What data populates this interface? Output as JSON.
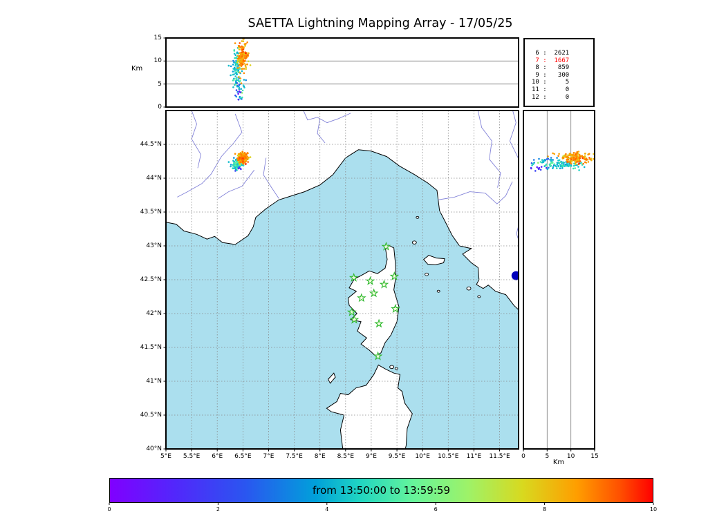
{
  "chart_data": {
    "type": "scatter",
    "title": "SAETTA Lightning Mapping Array - 17/05/25",
    "map_panel": {
      "lon_range": [
        5.0,
        11.87
      ],
      "lat_range": [
        40.0,
        45.0
      ],
      "lon_ticks": [
        {
          "v": 5,
          "t": "5°E"
        },
        {
          "v": 5.5,
          "t": "5.5°E"
        },
        {
          "v": 6,
          "t": "6°E"
        },
        {
          "v": 6.5,
          "t": "6.5°E"
        },
        {
          "v": 7,
          "t": "7°E"
        },
        {
          "v": 7.5,
          "t": "7.5°E"
        },
        {
          "v": 8,
          "t": "8°E"
        },
        {
          "v": 8.5,
          "t": "8.5°E"
        },
        {
          "v": 9,
          "t": "9°E"
        },
        {
          "v": 9.5,
          "t": "9.5°E"
        },
        {
          "v": 10,
          "t": "10°E"
        },
        {
          "v": 10.5,
          "t": "10.5°E"
        },
        {
          "v": 11,
          "t": "11°E"
        },
        {
          "v": 11.5,
          "t": "11.5°E"
        }
      ],
      "lat_ticks": [
        {
          "v": 40,
          "t": "40°N"
        },
        {
          "v": 40.5,
          "t": "40.5°N"
        },
        {
          "v": 41,
          "t": "41°N"
        },
        {
          "v": 41.5,
          "t": "41.5°N"
        },
        {
          "v": 42,
          "t": "42°N"
        },
        {
          "v": 42.5,
          "t": "42.5°N"
        },
        {
          "v": 43,
          "t": "43°N"
        },
        {
          "v": 43.5,
          "t": "43.5°N"
        },
        {
          "v": 44,
          "t": "44°N"
        },
        {
          "v": 44.5,
          "t": "44.5°N"
        }
      ]
    },
    "altitude_axis": {
      "label": "Km",
      "range": [
        0,
        15
      ],
      "ticks": [
        {
          "v": 0,
          "t": "0"
        },
        {
          "v": 5,
          "t": "5"
        },
        {
          "v": 10,
          "t": "10"
        },
        {
          "v": 15,
          "t": "15"
        }
      ],
      "gridlines": [
        5,
        10
      ]
    },
    "station_counts": {
      "rows": [
        [
          "6",
          2621
        ],
        [
          "7",
          1667
        ],
        [
          "8",
          859
        ],
        [
          "9",
          300
        ],
        [
          "10",
          5
        ],
        [
          "11",
          0
        ],
        [
          "12",
          0
        ]
      ],
      "highlight_station": "7",
      "highlight_color": "#ff0000"
    },
    "stations_lonlat": [
      [
        9.29,
        42.99
      ],
      [
        8.66,
        42.53
      ],
      [
        8.98,
        42.48
      ],
      [
        9.25,
        42.43
      ],
      [
        9.45,
        42.55
      ],
      [
        8.81,
        42.23
      ],
      [
        9.05,
        42.3
      ],
      [
        8.62,
        42.02
      ],
      [
        8.67,
        41.91
      ],
      [
        9.47,
        42.07
      ],
      [
        9.15,
        41.85
      ],
      [
        9.13,
        41.37
      ]
    ],
    "storm_cells": [
      {
        "n": 150,
        "lon": 6.5,
        "lat": 44.3,
        "slon": 0.055,
        "slat": 0.038,
        "alt_mean": 10.8,
        "alt_sd": 1.7,
        "t_mean": 0.84,
        "t_sd": 0.05
      },
      {
        "n": 85,
        "lon": 6.37,
        "lat": 44.2,
        "slon": 0.045,
        "slat": 0.032,
        "alt_mean": 8.2,
        "alt_sd": 2.1,
        "t_mean": 0.44,
        "t_sd": 0.05
      },
      {
        "n": 30,
        "lon": 6.45,
        "lat": 44.25,
        "slon": 0.05,
        "slat": 0.04,
        "alt_mean": 4.5,
        "alt_sd": 1.3,
        "t_mean": 0.38,
        "t_sd": 0.09
      },
      {
        "n": 10,
        "lon": 6.42,
        "lat": 44.15,
        "slon": 0.025,
        "slat": 0.02,
        "alt_mean": 3.0,
        "alt_sd": 0.9,
        "t_mean": 0.12,
        "t_sd": 0.06
      }
    ],
    "colorbar": {
      "label": "from 13:50:00 to 13:59:59",
      "range": [
        0,
        10
      ],
      "ticks": [
        {
          "v": 0,
          "t": "0"
        },
        {
          "v": 2,
          "t": "2"
        },
        {
          "v": 4,
          "t": "4"
        },
        {
          "v": 6,
          "t": "6"
        },
        {
          "v": 8,
          "t": "8"
        },
        {
          "v": 10,
          "t": "10"
        }
      ],
      "stops": [
        [
          0,
          "#8000ff"
        ],
        [
          0.12,
          "#5227fb"
        ],
        [
          0.25,
          "#2a56f0"
        ],
        [
          0.38,
          "#00a1da"
        ],
        [
          0.46,
          "#20d5c2"
        ],
        [
          0.56,
          "#66f59a"
        ],
        [
          0.66,
          "#9ef268"
        ],
        [
          0.76,
          "#d8d91f"
        ],
        [
          0.86,
          "#ff9e00"
        ],
        [
          0.94,
          "#ff4f00"
        ],
        [
          1,
          "#ff0000"
        ]
      ]
    },
    "lake_marker": {
      "lon": 11.82,
      "lat": 42.56,
      "r": 6.5,
      "color": "#0000bb"
    }
  },
  "geography": {
    "sea_color": "#abdfee",
    "land_color": "#ffffff",
    "coast_color": "#000000",
    "river_color": "#8282d8",
    "grid_color": "#888888",
    "star_edge_color": "#2eb82e",
    "star_fill_color": "#f2ffd9",
    "mainland": [
      [
        5.0,
        43.35
      ],
      [
        5.2,
        43.32
      ],
      [
        5.35,
        43.22
      ],
      [
        5.6,
        43.17
      ],
      [
        5.8,
        43.1
      ],
      [
        5.95,
        43.14
      ],
      [
        6.1,
        43.05
      ],
      [
        6.35,
        43.02
      ],
      [
        6.6,
        43.15
      ],
      [
        6.7,
        43.28
      ],
      [
        6.75,
        43.42
      ],
      [
        6.95,
        43.55
      ],
      [
        7.2,
        43.68
      ],
      [
        7.45,
        43.74
      ],
      [
        7.7,
        43.8
      ],
      [
        8.0,
        43.9
      ],
      [
        8.25,
        44.05
      ],
      [
        8.5,
        44.3
      ],
      [
        8.75,
        44.42
      ],
      [
        9.0,
        44.4
      ],
      [
        9.3,
        44.32
      ],
      [
        9.55,
        44.18
      ],
      [
        9.85,
        44.05
      ],
      [
        10.1,
        43.93
      ],
      [
        10.28,
        43.82
      ],
      [
        10.33,
        43.52
      ],
      [
        10.48,
        43.3
      ],
      [
        10.58,
        43.15
      ],
      [
        10.72,
        43.0
      ],
      [
        10.95,
        42.96
      ],
      [
        10.78,
        42.88
      ],
      [
        10.95,
        42.75
      ],
      [
        11.08,
        42.68
      ],
      [
        11.1,
        42.5
      ],
      [
        11.05,
        42.43
      ],
      [
        11.18,
        42.37
      ],
      [
        11.28,
        42.42
      ],
      [
        11.42,
        42.33
      ],
      [
        11.62,
        42.28
      ],
      [
        11.78,
        42.12
      ],
      [
        11.92,
        42.02
      ],
      [
        11.95,
        45.1
      ],
      [
        4.9,
        45.1
      ]
    ],
    "corsica": [
      [
        9.33,
        43.01
      ],
      [
        9.44,
        42.97
      ],
      [
        9.47,
        42.75
      ],
      [
        9.48,
        42.55
      ],
      [
        9.44,
        42.35
      ],
      [
        9.54,
        42.1
      ],
      [
        9.5,
        41.88
      ],
      [
        9.38,
        41.68
      ],
      [
        9.27,
        41.57
      ],
      [
        9.19,
        41.42
      ],
      [
        9.09,
        41.37
      ],
      [
        8.96,
        41.46
      ],
      [
        8.8,
        41.55
      ],
      [
        8.91,
        41.64
      ],
      [
        8.73,
        41.74
      ],
      [
        8.8,
        41.88
      ],
      [
        8.6,
        41.91
      ],
      [
        8.72,
        42.0
      ],
      [
        8.57,
        42.12
      ],
      [
        8.55,
        42.23
      ],
      [
        8.71,
        42.33
      ],
      [
        8.57,
        42.38
      ],
      [
        8.67,
        42.51
      ],
      [
        8.8,
        42.56
      ],
      [
        8.96,
        42.63
      ],
      [
        9.12,
        42.59
      ],
      [
        9.27,
        42.67
      ],
      [
        9.31,
        42.8
      ],
      [
        9.28,
        42.95
      ]
    ],
    "sardinia": [
      [
        8.46,
        39.9
      ],
      [
        8.4,
        40.28
      ],
      [
        8.47,
        40.5
      ],
      [
        8.22,
        40.55
      ],
      [
        8.13,
        40.6
      ],
      [
        8.33,
        40.7
      ],
      [
        8.4,
        40.82
      ],
      [
        8.55,
        40.8
      ],
      [
        8.7,
        40.9
      ],
      [
        8.9,
        40.94
      ],
      [
        9.05,
        41.1
      ],
      [
        9.14,
        41.24
      ],
      [
        9.28,
        41.18
      ],
      [
        9.44,
        41.12
      ],
      [
        9.56,
        41.1
      ],
      [
        9.52,
        40.9
      ],
      [
        9.6,
        40.85
      ],
      [
        9.65,
        40.68
      ],
      [
        9.8,
        40.52
      ],
      [
        9.7,
        40.3
      ],
      [
        9.68,
        40.05
      ],
      [
        9.63,
        39.9
      ]
    ],
    "elba": [
      [
        10.02,
        42.8
      ],
      [
        10.12,
        42.86
      ],
      [
        10.27,
        42.82
      ],
      [
        10.43,
        42.81
      ],
      [
        10.41,
        42.75
      ],
      [
        10.25,
        42.72
      ],
      [
        10.1,
        42.73
      ]
    ],
    "asinara": [
      [
        8.2,
        40.97
      ],
      [
        8.3,
        41.06
      ],
      [
        8.27,
        41.12
      ],
      [
        8.16,
        41.03
      ]
    ],
    "islets": [
      [
        9.84,
        43.05,
        3
      ],
      [
        9.9,
        43.42,
        2
      ],
      [
        10.08,
        42.58,
        2.5
      ],
      [
        10.31,
        42.33,
        2
      ],
      [
        10.9,
        42.37,
        3
      ],
      [
        11.1,
        42.25,
        2
      ],
      [
        9.4,
        41.21,
        3
      ],
      [
        9.49,
        41.19,
        2
      ]
    ],
    "rivers": [
      [
        [
          5.45,
          45.1
        ],
        [
          5.6,
          44.8
        ],
        [
          5.5,
          44.58
        ],
        [
          5.68,
          44.35
        ],
        [
          5.62,
          44.15
        ]
      ],
      [
        [
          6.35,
          44.95
        ],
        [
          6.48,
          44.68
        ],
        [
          6.32,
          44.52
        ],
        [
          6.08,
          44.32
        ],
        [
          5.88,
          44.06
        ],
        [
          5.7,
          43.92
        ],
        [
          5.42,
          43.8
        ],
        [
          5.22,
          43.72
        ]
      ],
      [
        [
          6.95,
          44.3
        ],
        [
          6.9,
          44.05
        ],
        [
          7.05,
          43.87
        ],
        [
          7.2,
          43.7
        ]
      ],
      [
        [
          6.72,
          44.12
        ],
        [
          6.48,
          43.88
        ],
        [
          6.22,
          43.8
        ],
        [
          6.02,
          43.7
        ]
      ],
      [
        [
          7.62,
          45.1
        ],
        [
          7.76,
          44.86
        ],
        [
          7.95,
          44.9
        ],
        [
          8.14,
          44.82
        ],
        [
          8.36,
          44.88
        ],
        [
          8.6,
          44.96
        ]
      ],
      [
        [
          8.0,
          44.88
        ],
        [
          7.95,
          44.66
        ],
        [
          8.1,
          44.52
        ]
      ],
      [
        [
          10.3,
          43.68
        ],
        [
          10.62,
          43.72
        ],
        [
          10.92,
          43.8
        ],
        [
          11.22,
          43.78
        ],
        [
          11.45,
          43.62
        ],
        [
          11.62,
          43.74
        ],
        [
          11.75,
          43.95
        ]
      ],
      [
        [
          11.05,
          45.1
        ],
        [
          11.15,
          44.75
        ],
        [
          11.35,
          44.55
        ],
        [
          11.3,
          44.28
        ],
        [
          11.52,
          44.08
        ],
        [
          11.46,
          43.86
        ]
      ],
      [
        [
          11.72,
          45.1
        ],
        [
          11.82,
          44.82
        ],
        [
          11.7,
          44.55
        ],
        [
          11.86,
          44.3
        ]
      ],
      [
        [
          11.92,
          43.45
        ],
        [
          11.83,
          43.18
        ],
        [
          11.93,
          42.95
        ],
        [
          11.88,
          42.7
        ]
      ]
    ]
  }
}
